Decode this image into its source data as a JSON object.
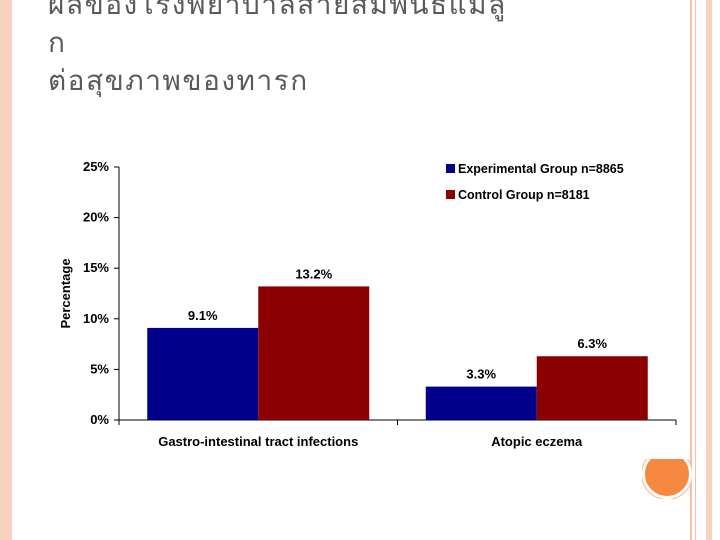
{
  "slide": {
    "title_lines": [
      "ผลของโรงพยาบาลสายสัมพันธ์แม่ลู",
      "ก",
      "ต่อสุขภาพของทารก"
    ],
    "colors": {
      "accent": "#f6883f",
      "band": "#f6d2bf"
    }
  },
  "chart_data": {
    "type": "bar",
    "categories": [
      "Gastro-intestinal tract infections",
      "Atopic eczema"
    ],
    "series": [
      {
        "name": "Experimental Group n=8865",
        "values": [
          9.1,
          3.3
        ],
        "labels": [
          "9.1%",
          "3.3%"
        ],
        "color": "#00008b"
      },
      {
        "name": "Control Group n=8181",
        "values": [
          13.2,
          6.3
        ],
        "labels": [
          "13.2%",
          "6.3%"
        ],
        "color": "#8b0000"
      }
    ],
    "ylabel": "Percentage",
    "xlabel": "",
    "ylim": [
      0,
      25
    ],
    "yticks": [
      "0%",
      "5%",
      "10%",
      "15%",
      "20%",
      "25%"
    ],
    "ytick_values": [
      0,
      5,
      10,
      15,
      20,
      25
    ],
    "grid": false,
    "legend_position": "top-right"
  }
}
